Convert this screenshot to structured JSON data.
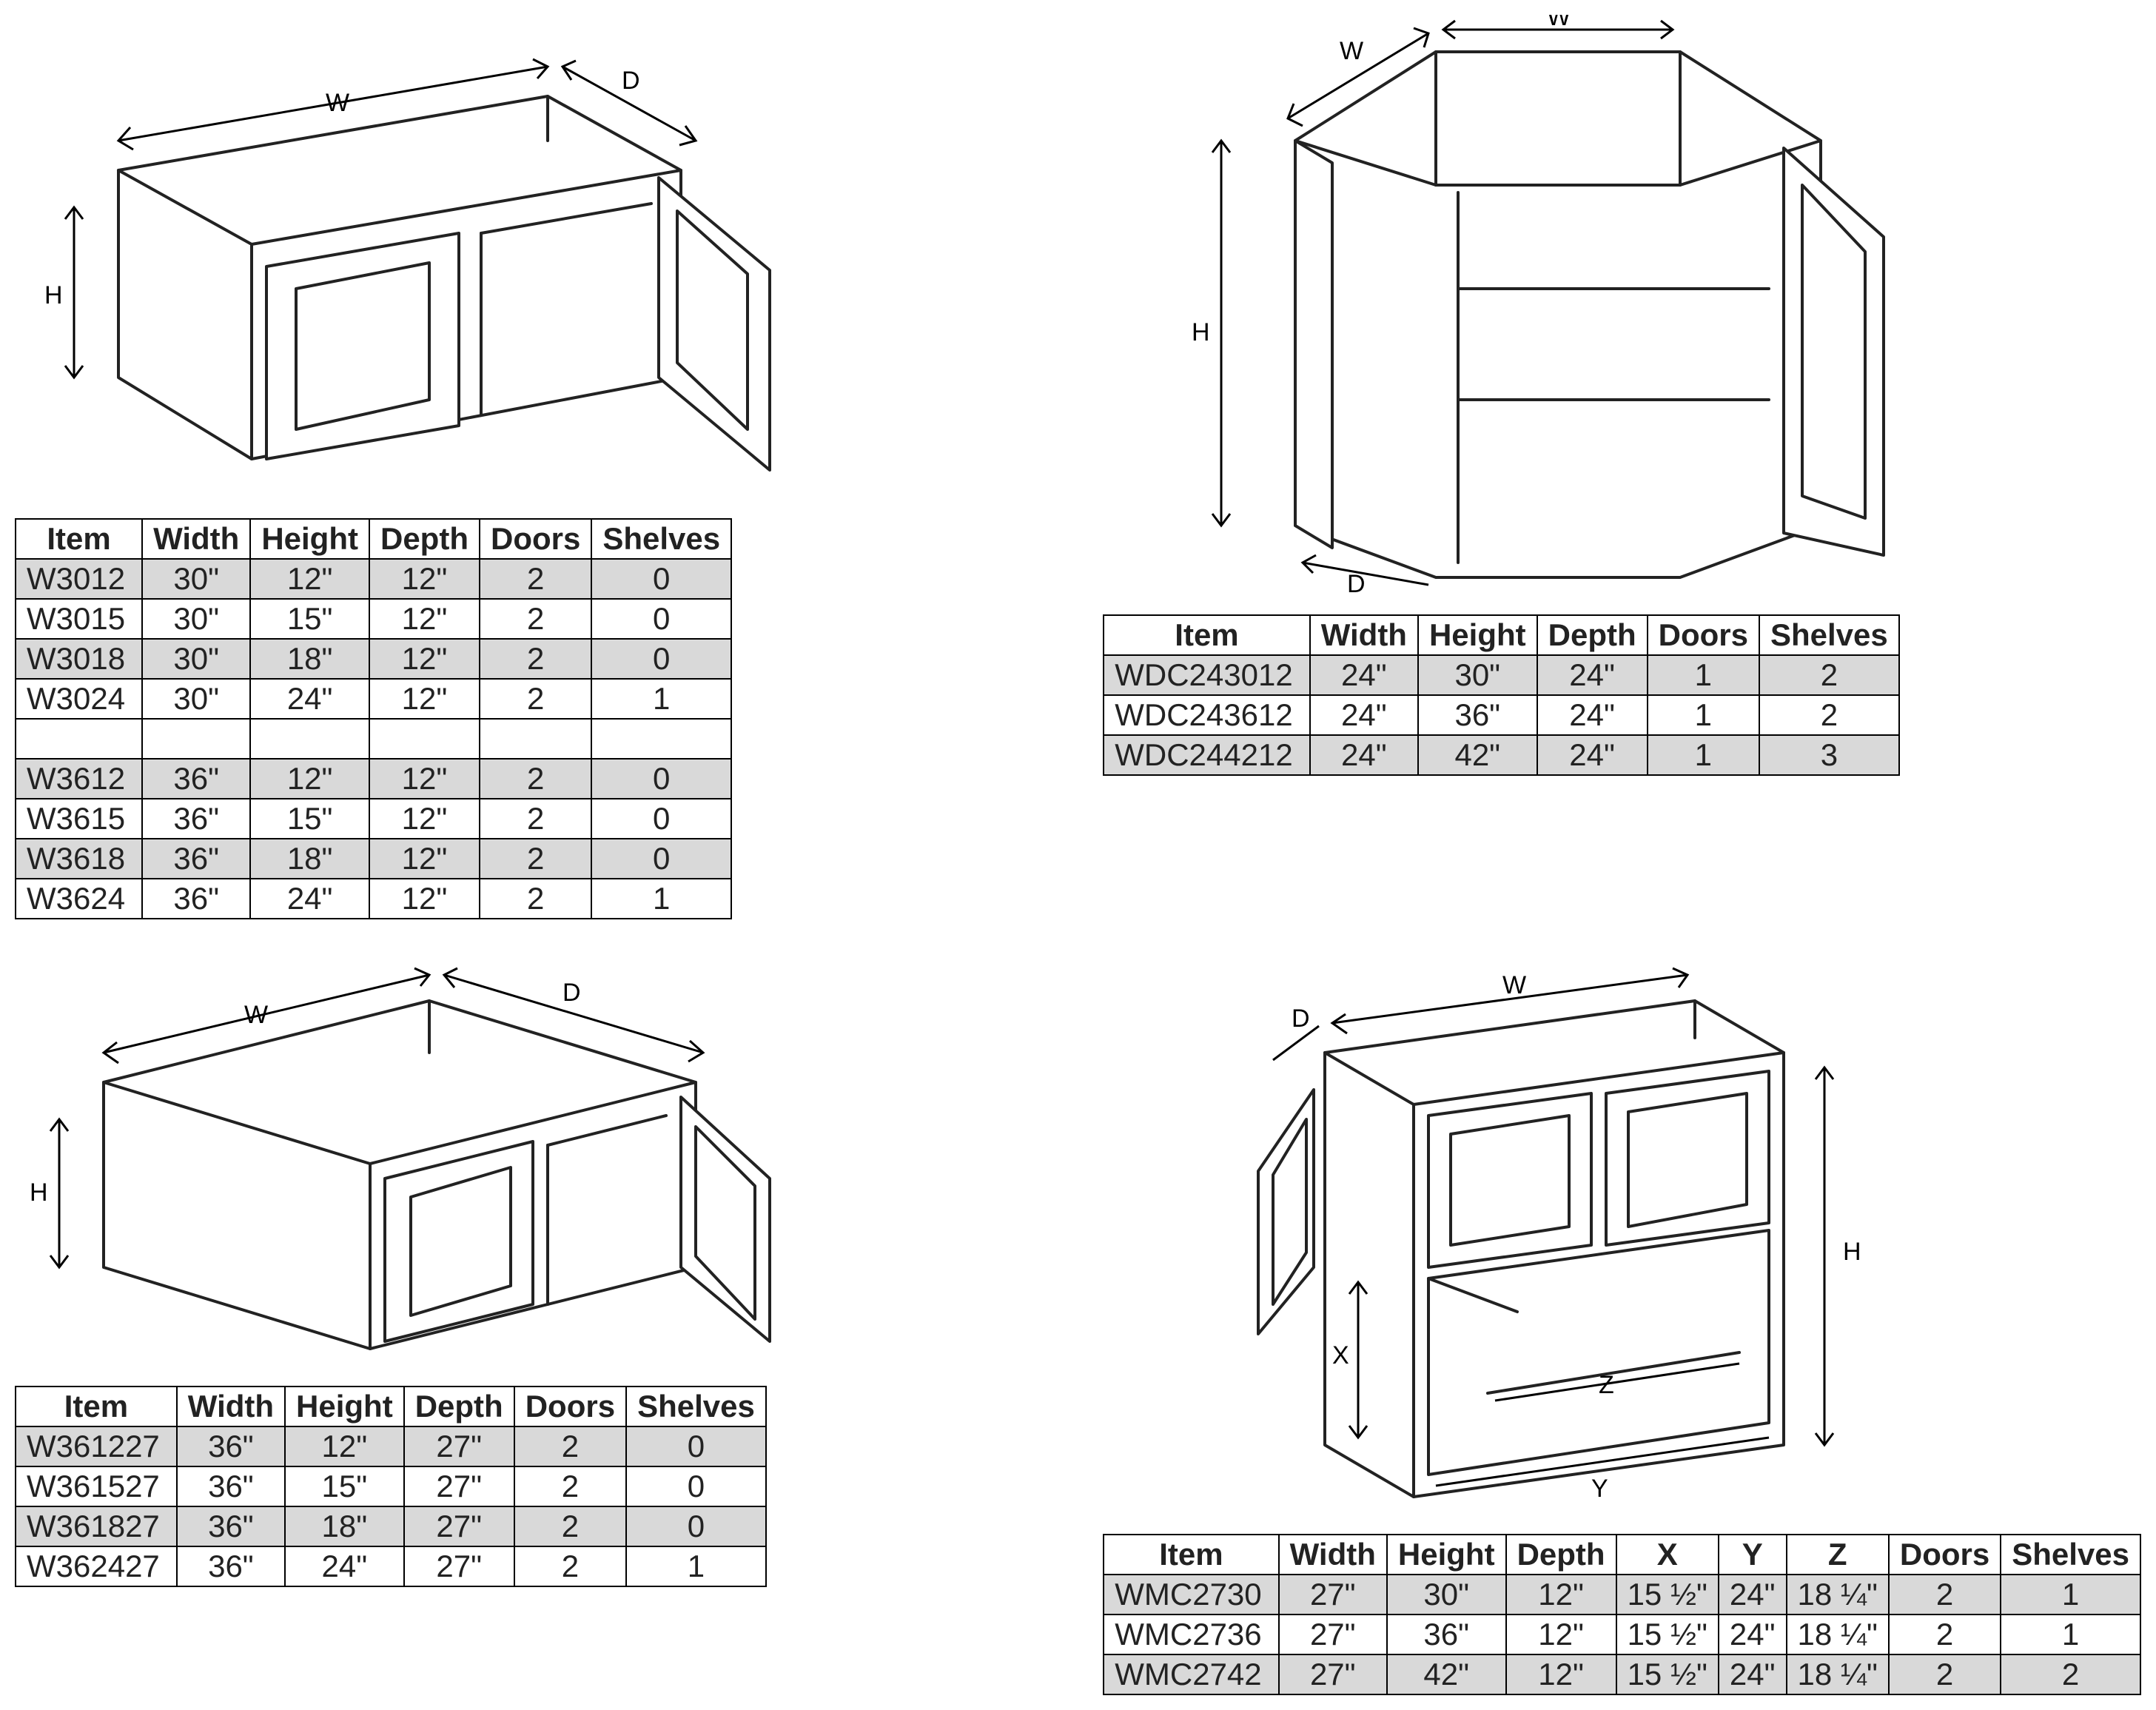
{
  "dim_labels": {
    "W": "W",
    "H": "H",
    "D": "D",
    "X": "X",
    "Y": "Y",
    "Z": "Z"
  },
  "diagram_stroke": "#222222",
  "diagram_fill": "#ffffff",
  "table1": {
    "columns": [
      "Item",
      "Width",
      "Height",
      "Depth",
      "Doors",
      "Shelves"
    ],
    "rows": [
      [
        "W3012",
        "30\"",
        "12\"",
        "12\"",
        "2",
        "0"
      ],
      [
        "W3015",
        "30\"",
        "15\"",
        "12\"",
        "2",
        "0"
      ],
      [
        "W3018",
        "30\"",
        "18\"",
        "12\"",
        "2",
        "0"
      ],
      [
        "W3024",
        "30\"",
        "24\"",
        "12\"",
        "2",
        "1"
      ],
      [],
      [
        "W3612",
        "36\"",
        "12\"",
        "12\"",
        "2",
        "0"
      ],
      [
        "W3615",
        "36\"",
        "15\"",
        "12\"",
        "2",
        "0"
      ],
      [
        "W3618",
        "36\"",
        "18\"",
        "12\"",
        "2",
        "0"
      ],
      [
        "W3624",
        "36\"",
        "24\"",
        "12\"",
        "2",
        "1"
      ]
    ]
  },
  "table2": {
    "columns": [
      "Item",
      "Width",
      "Height",
      "Depth",
      "Doors",
      "Shelves"
    ],
    "rows": [
      [
        "WDC243012",
        "24\"",
        "30\"",
        "24\"",
        "1",
        "2"
      ],
      [
        "WDC243612",
        "24\"",
        "36\"",
        "24\"",
        "1",
        "2"
      ],
      [
        "WDC244212",
        "24\"",
        "42\"",
        "24\"",
        "1",
        "3"
      ]
    ]
  },
  "table3": {
    "columns": [
      "Item",
      "Width",
      "Height",
      "Depth",
      "Doors",
      "Shelves"
    ],
    "rows": [
      [
        "W361227",
        "36\"",
        "12\"",
        "27\"",
        "2",
        "0"
      ],
      [
        "W361527",
        "36\"",
        "15\"",
        "27\"",
        "2",
        "0"
      ],
      [
        "W361827",
        "36\"",
        "18\"",
        "27\"",
        "2",
        "0"
      ],
      [
        "W362427",
        "36\"",
        "24\"",
        "27\"",
        "2",
        "1"
      ]
    ]
  },
  "table4": {
    "columns": [
      "Item",
      "Width",
      "Height",
      "Depth",
      "X",
      "Y",
      "Z",
      "Doors",
      "Shelves"
    ],
    "rows": [
      [
        "WMC2730",
        "27\"",
        "30\"",
        "12\"",
        "15 ½\"",
        "24\"",
        "18 ¼\"",
        "2",
        "1"
      ],
      [
        "WMC2736",
        "27\"",
        "36\"",
        "12\"",
        "15 ½\"",
        "24\"",
        "18 ¼\"",
        "2",
        "1"
      ],
      [
        "WMC2742",
        "27\"",
        "42\"",
        "12\"",
        "15 ½\"",
        "24\"",
        "18 ¼\"",
        "2",
        "2"
      ]
    ]
  }
}
